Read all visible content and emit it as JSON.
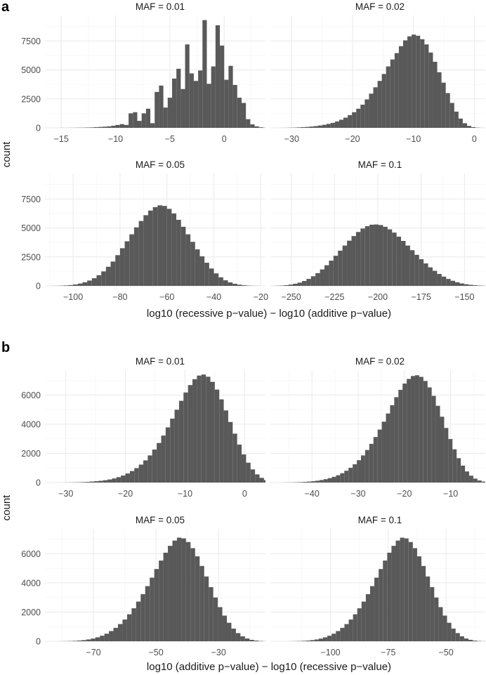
{
  "chart_data": [
    {
      "type": "bar",
      "panel": "a",
      "ylabel": "count",
      "xlabel": "log10 (recessive p−value) − log10 (additive p−value)",
      "facets": [
        {
          "title": "MAF = 0.01",
          "xlim": [
            -16.5,
            3.8
          ],
          "ylim": [
            0,
            9700
          ],
          "xticks": [
            -15,
            -10,
            -5,
            0
          ],
          "xtick_labels": [
            "−15",
            "−10",
            "−5",
            "0"
          ],
          "yticks": [
            0,
            2500,
            5000,
            7500
          ],
          "ytick_labels": [
            "0",
            "2500",
            "5000",
            "7500"
          ],
          "bin_width": 0.4,
          "bin_start": -15.2,
          "counts": [
            5,
            5,
            8,
            10,
            15,
            20,
            30,
            40,
            60,
            80,
            100,
            130,
            180,
            250,
            320,
            250,
            1250,
            1350,
            600,
            1250,
            1650,
            400,
            3100,
            3650,
            1750,
            2600,
            4250,
            5100,
            3350,
            7200,
            4700,
            4050,
            4950,
            9300,
            3800,
            5300,
            8850,
            7100,
            4150,
            5350,
            3700,
            2600,
            2150,
            750,
            300,
            130,
            50,
            15
          ]
        },
        {
          "title": "MAF = 0.02",
          "xlim": [
            -33.5,
            1.8
          ],
          "ylim": [
            0,
            9700
          ],
          "xticks": [
            -30,
            -20,
            -10,
            0
          ],
          "xtick_labels": [
            "−30",
            "−20",
            "−10",
            "0"
          ],
          "yticks": [
            0,
            2500,
            5000,
            7500
          ],
          "ytick_labels": [
            "0",
            "2500",
            "5000",
            "7500"
          ],
          "bin_width": 0.7,
          "bin_start": -32.0,
          "counts": [
            5,
            10,
            15,
            25,
            40,
            60,
            80,
            110,
            150,
            200,
            260,
            340,
            430,
            550,
            700,
            880,
            1100,
            1350,
            1650,
            2000,
            2450,
            2950,
            3500,
            4050,
            4650,
            5300,
            5900,
            6450,
            7050,
            7550,
            7900,
            8050,
            7950,
            7650,
            7200,
            6500,
            5700,
            4800,
            3900,
            3000,
            2150,
            1400,
            800,
            400,
            170,
            60,
            20,
            5
          ]
        },
        {
          "title": "MAF = 0.05",
          "xlim": [
            -112,
            -18
          ],
          "ylim": [
            0,
            9700
          ],
          "xticks": [
            -100,
            -80,
            -60,
            -40,
            -20
          ],
          "xtick_labels": [
            "−100",
            "−80",
            "−60",
            "−40",
            "−20"
          ],
          "yticks": [
            0,
            2500,
            5000,
            7500
          ],
          "ytick_labels": [
            "0",
            "2500",
            "5000",
            "7500"
          ],
          "bin_width": 2.0,
          "bin_start": -110,
          "counts": [
            5,
            10,
            20,
            40,
            70,
            120,
            200,
            310,
            460,
            660,
            920,
            1250,
            1650,
            2100,
            2650,
            3250,
            3850,
            4450,
            5050,
            5600,
            6100,
            6500,
            6800,
            6950,
            6900,
            6650,
            6250,
            5700,
            5100,
            4450,
            3800,
            3150,
            2550,
            2000,
            1500,
            1080,
            740,
            480,
            300,
            180,
            100,
            55,
            25,
            10,
            5
          ]
        },
        {
          "title": "MAF = 0.1",
          "xlim": [
            -262,
            -138
          ],
          "ylim": [
            0,
            9700
          ],
          "xticks": [
            -250,
            -225,
            -200,
            -175,
            -150
          ],
          "xtick_labels": [
            "−250",
            "−225",
            "−200",
            "−175",
            "−150"
          ],
          "yticks": [
            0,
            2500,
            5000,
            7500
          ],
          "ytick_labels": [
            "0",
            "2500",
            "5000",
            "7500"
          ],
          "bin_width": 2.6,
          "bin_start": -262,
          "counts": [
            5,
            15,
            30,
            60,
            110,
            180,
            280,
            420,
            600,
            830,
            1100,
            1420,
            1780,
            2180,
            2600,
            3040,
            3480,
            3900,
            4300,
            4650,
            4950,
            5150,
            5280,
            5300,
            5250,
            5100,
            4880,
            4600,
            4250,
            3880,
            3480,
            3080,
            2680,
            2300,
            1940,
            1600,
            1300,
            1030,
            800,
            600,
            440,
            310,
            210,
            140,
            90,
            55,
            30,
            15,
            5
          ]
        }
      ]
    },
    {
      "type": "bar",
      "panel": "b",
      "ylabel": "count",
      "xlabel": "log10 (additive p−value) − log10 (recessive p−value)",
      "facets": [
        {
          "title": "MAF = 0.01",
          "xlim": [
            -33.5,
            3.5
          ],
          "ylim": [
            0,
            7700
          ],
          "xticks": [
            -30,
            -20,
            -10,
            0
          ],
          "xtick_labels": [
            "−30",
            "−20",
            "−10",
            "0"
          ],
          "yticks": [
            0,
            2000,
            4000,
            6000
          ],
          "ytick_labels": [
            "0",
            "2000",
            "4000",
            "6000"
          ],
          "bin_width": 0.75,
          "bin_start": -30.5,
          "counts": [
            5,
            8,
            12,
            20,
            30,
            45,
            65,
            90,
            120,
            160,
            210,
            280,
            370,
            480,
            620,
            790,
            990,
            1230,
            1520,
            1860,
            2260,
            2710,
            3220,
            3780,
            4380,
            4990,
            5600,
            6170,
            6680,
            7080,
            7330,
            7400,
            7250,
            6900,
            6370,
            5700,
            4940,
            4150,
            3350,
            2600,
            1930,
            1360,
            900,
            560,
            320,
            170,
            80,
            35,
            12,
            5
          ]
        },
        {
          "title": "MAF = 0.02",
          "xlim": [
            -49,
            -2.5
          ],
          "ylim": [
            0,
            7700
          ],
          "xticks": [
            -40,
            -30,
            -20,
            -10
          ],
          "xtick_labels": [
            "−40",
            "−30",
            "−20",
            "−10"
          ],
          "yticks": [
            0,
            2000,
            4000,
            6000
          ],
          "ytick_labels": [
            "0",
            "2000",
            "4000",
            "6000"
          ],
          "bin_width": 0.9,
          "bin_start": -46.5,
          "counts": [
            5,
            8,
            12,
            20,
            30,
            45,
            65,
            90,
            125,
            170,
            230,
            300,
            390,
            500,
            640,
            810,
            1010,
            1250,
            1530,
            1860,
            2230,
            2650,
            3120,
            3630,
            4170,
            4730,
            5300,
            5850,
            6350,
            6780,
            7100,
            7300,
            7350,
            7240,
            6960,
            6520,
            5940,
            5260,
            4510,
            3740,
            2980,
            2280,
            1670,
            1160,
            760,
            470,
            270,
            140,
            65,
            25,
            8
          ]
        },
        {
          "title": "MAF = 0.05",
          "xlim": [
            -85.5,
            -15
          ],
          "ylim": [
            0,
            7700
          ],
          "xticks": [
            -70,
            -50,
            -30
          ],
          "xtick_labels": [
            "−70",
            "−50",
            "−30"
          ],
          "yticks": [
            0,
            2000,
            4000,
            6000
          ],
          "ytick_labels": [
            "0",
            "2000",
            "4000",
            "6000"
          ],
          "bin_width": 1.45,
          "bin_start": -81.0,
          "counts": [
            5,
            10,
            18,
            30,
            50,
            80,
            125,
            185,
            270,
            380,
            520,
            700,
            920,
            1180,
            1490,
            1850,
            2260,
            2720,
            3230,
            3780,
            4360,
            4950,
            5530,
            6070,
            6540,
            6900,
            7100,
            7050,
            6800,
            6380,
            5820,
            5160,
            4440,
            3710,
            3000,
            2340,
            1760,
            1270,
            870,
            560,
            340,
            190,
            100,
            48,
            20,
            7
          ]
        },
        {
          "title": "MAF = 0.1",
          "xlim": [
            -126,
            -33
          ],
          "ylim": [
            0,
            7700
          ],
          "xticks": [
            -100,
            -75,
            -50
          ],
          "xtick_labels": [
            "−100",
            "−75",
            "−50"
          ],
          "yticks": [
            0,
            2000,
            4000,
            6000
          ],
          "ytick_labels": [
            "0",
            "2000",
            "4000",
            "6000"
          ],
          "bin_width": 1.85,
          "bin_start": -118.0,
          "counts": [
            5,
            10,
            18,
            30,
            50,
            80,
            125,
            185,
            270,
            380,
            520,
            700,
            920,
            1180,
            1490,
            1850,
            2260,
            2720,
            3230,
            3780,
            4360,
            4950,
            5530,
            6070,
            6540,
            6900,
            7100,
            7050,
            6800,
            6380,
            5820,
            5160,
            4440,
            3710,
            3000,
            2340,
            1760,
            1270,
            870,
            560,
            340,
            190,
            100,
            48,
            20,
            7
          ]
        }
      ]
    }
  ]
}
